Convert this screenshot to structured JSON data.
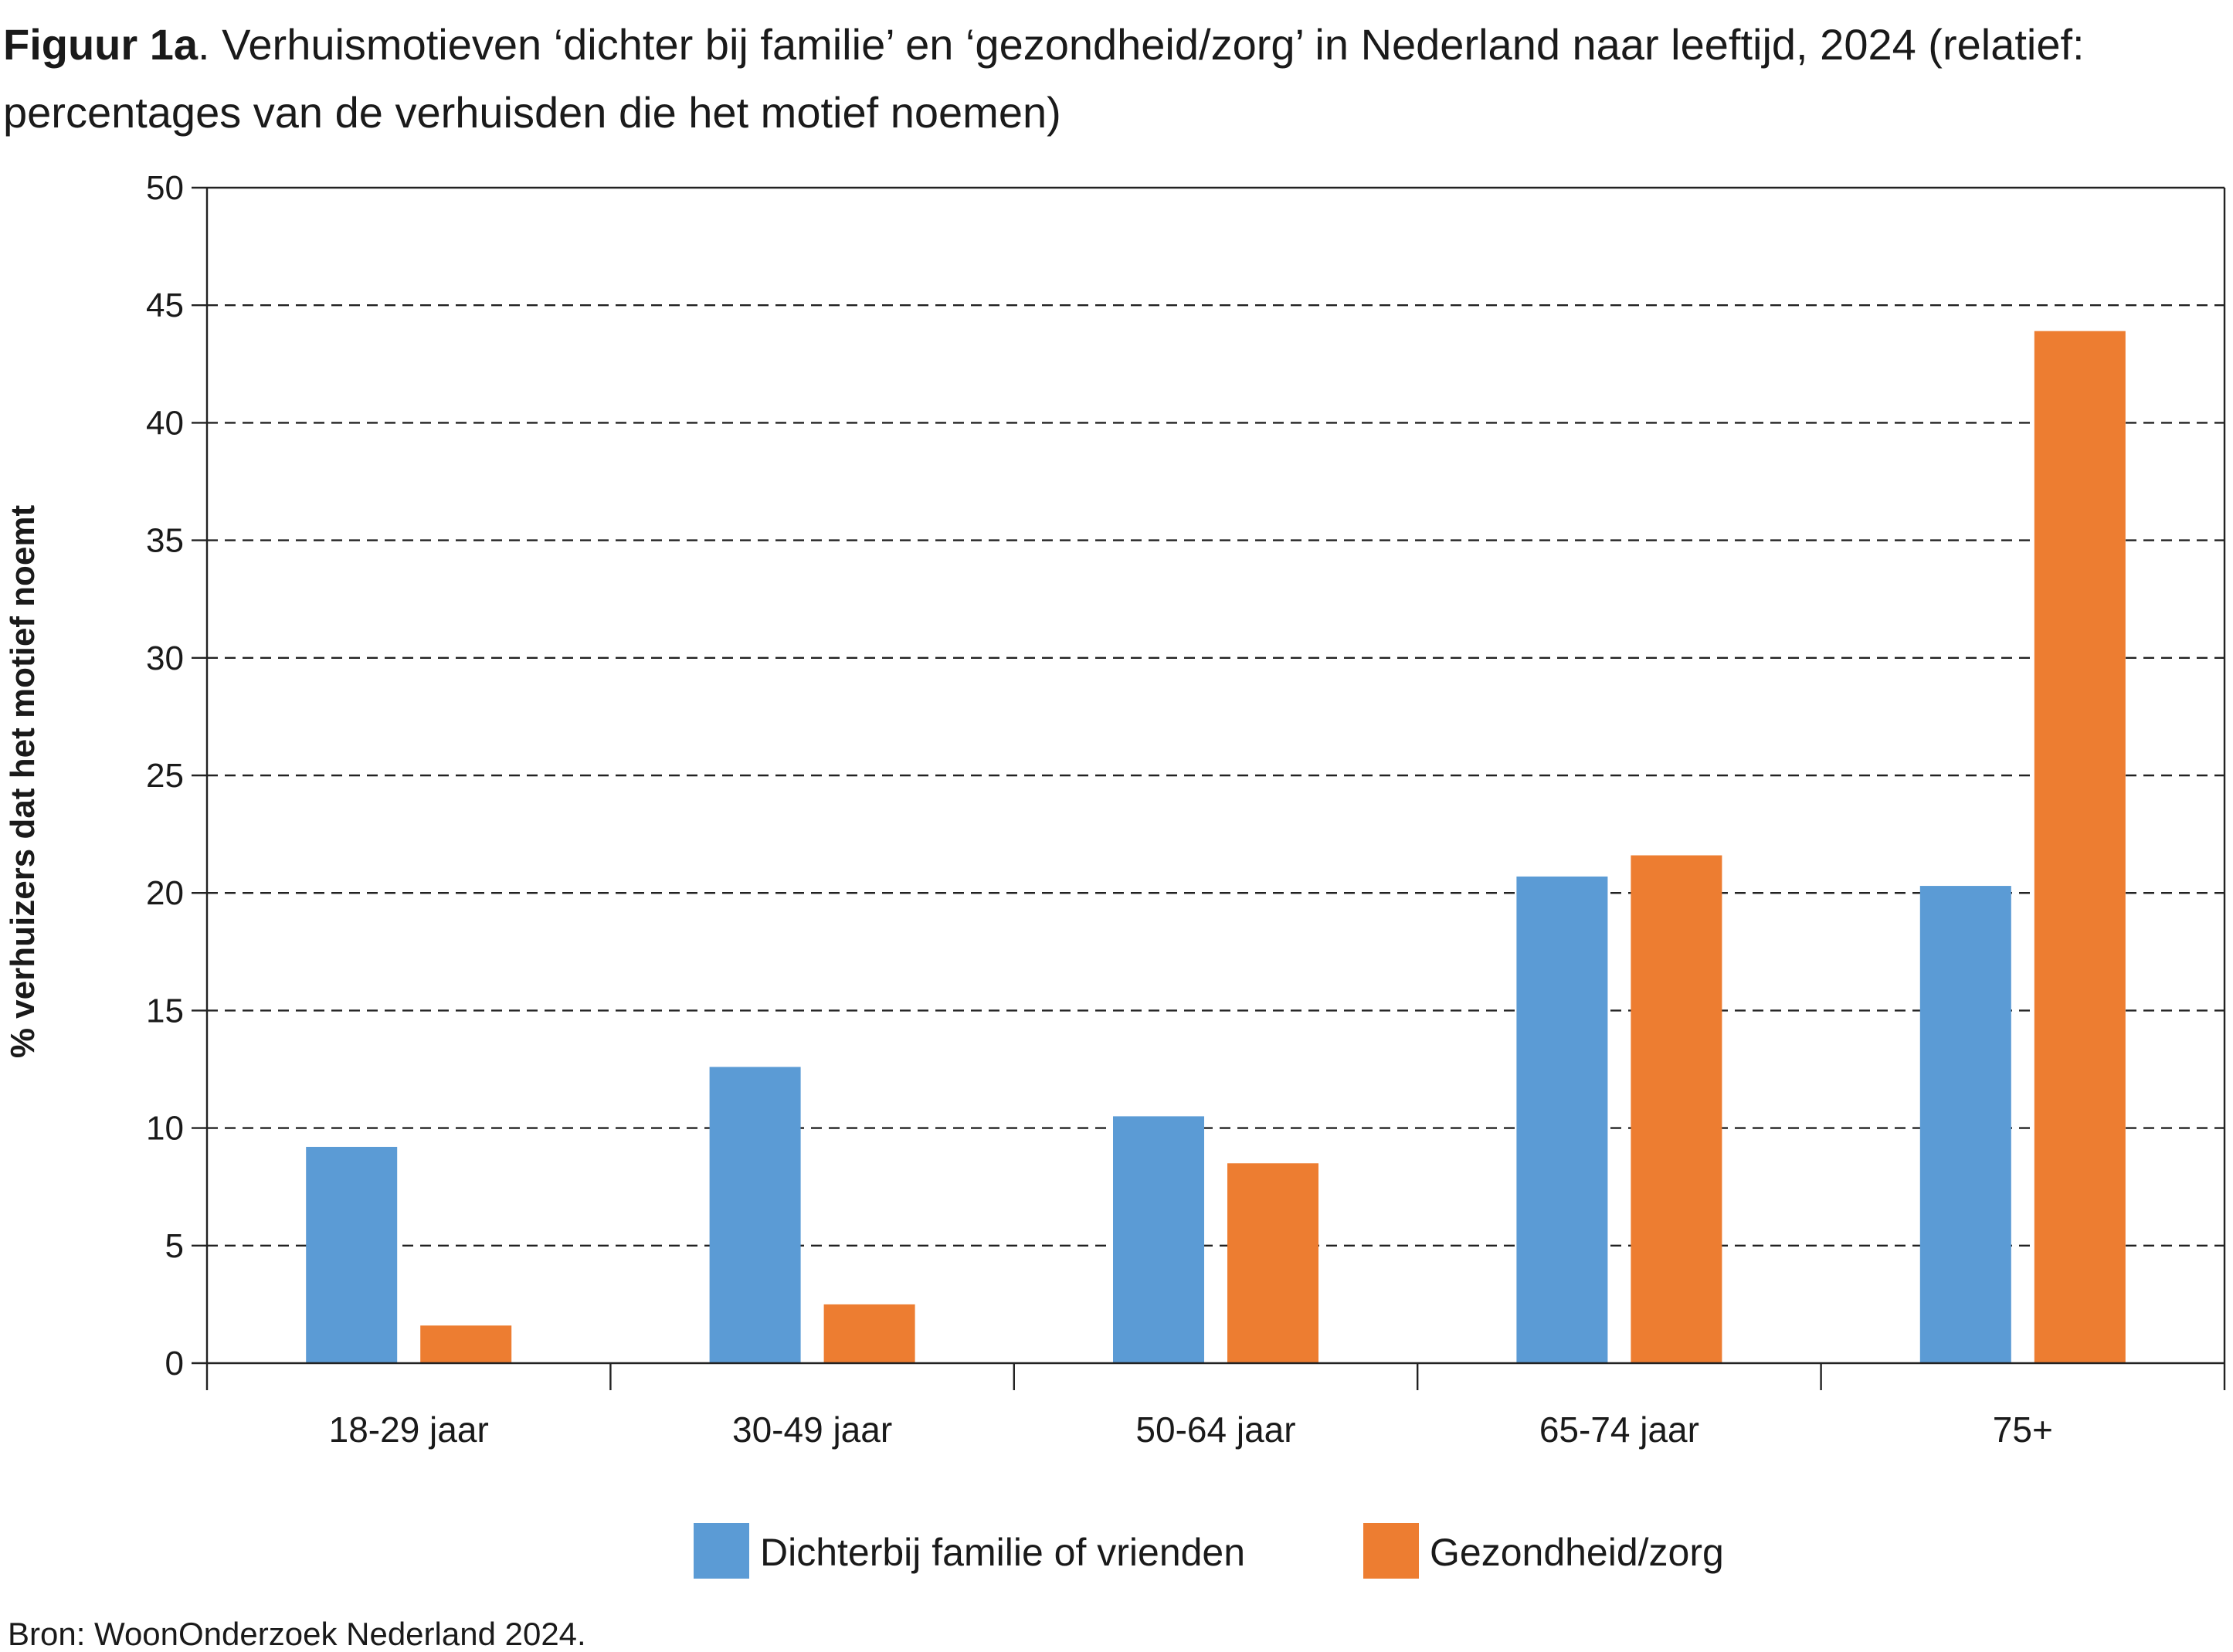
{
  "title": {
    "lead": "Figuur 1a",
    "text": ". Verhuismotieven ‘dichter bij familie’ en ‘gezondheid/zorg’ in Nederland naar leeftijd, 2024 (relatief: percentages van de verhuisden die het motief noemen)"
  },
  "source": "Bron: WoonOnderzoek Nederland 2024.",
  "chart_data": {
    "type": "bar",
    "title": "Verhuismotieven ‘dichter bij familie’ en ‘gezondheid/zorg’ in Nederland naar leeftijd, 2024",
    "xlabel": "",
    "ylabel": "% verhuizers dat het motief noemt",
    "ylim": [
      0,
      50
    ],
    "yticks": [
      0,
      5,
      10,
      15,
      20,
      25,
      30,
      35,
      40,
      45,
      50
    ],
    "grid": "horizontal dashed",
    "legend_position": "bottom",
    "categories": [
      "18-29 jaar",
      "30-49 jaar",
      "50-64 jaar",
      "65-74 jaar",
      "75+"
    ],
    "series": [
      {
        "name": "Dichterbij familie of vrienden",
        "color": "#5b9bd5",
        "values": [
          9.2,
          12.6,
          10.5,
          20.7,
          20.3
        ]
      },
      {
        "name": "Gezondheid/zorg",
        "color": "#ed7d31",
        "values": [
          1.6,
          2.5,
          8.5,
          21.6,
          43.9
        ]
      }
    ]
  }
}
